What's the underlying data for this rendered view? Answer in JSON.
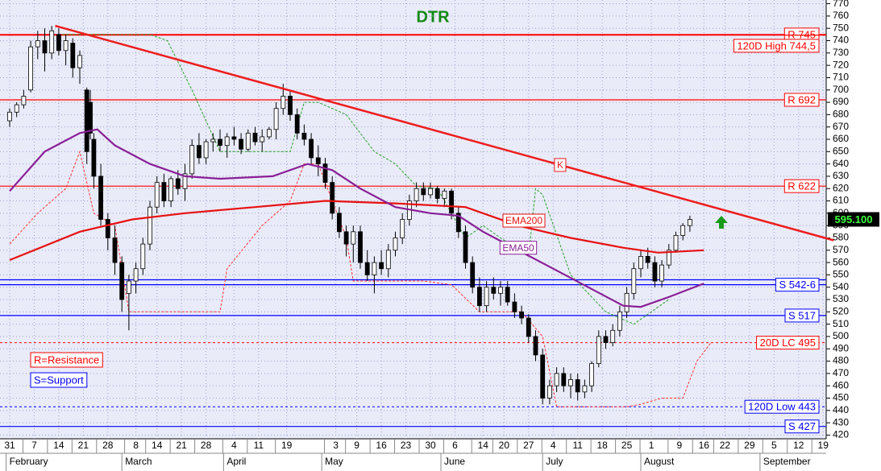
{
  "chart_data": {
    "type": "candlestick",
    "title": "DTR",
    "last_price": "595.100",
    "ylim": [
      417,
      773
    ],
    "yticks": [
      420,
      430,
      440,
      450,
      460,
      470,
      480,
      490,
      500,
      510,
      520,
      530,
      540,
      550,
      560,
      570,
      580,
      590,
      600,
      610,
      620,
      630,
      640,
      650,
      660,
      670,
      680,
      690,
      700,
      710,
      720,
      730,
      740,
      750,
      760,
      770
    ],
    "xlim": [
      -2,
      235
    ],
    "xticks": [
      {
        "value": 0,
        "label": "31"
      },
      {
        "value": 7,
        "label": "7"
      },
      {
        "value": 14,
        "label": "14"
      },
      {
        "value": 21,
        "label": "21"
      },
      {
        "value": 28,
        "label": "28"
      },
      {
        "value": 36,
        "label": "8"
      },
      {
        "value": 42,
        "label": "14"
      },
      {
        "value": 49,
        "label": "21"
      },
      {
        "value": 56,
        "label": "28"
      },
      {
        "value": 64,
        "label": "4"
      },
      {
        "value": 71,
        "label": "11"
      },
      {
        "value": 79,
        "label": "19"
      },
      {
        "value": 93,
        "label": "3"
      },
      {
        "value": 99,
        "label": "9"
      },
      {
        "value": 106,
        "label": "16"
      },
      {
        "value": 113,
        "label": "23"
      },
      {
        "value": 120,
        "label": "30"
      },
      {
        "value": 127,
        "label": "6"
      },
      {
        "value": 135,
        "label": "14"
      },
      {
        "value": 141,
        "label": "20"
      },
      {
        "value": 148,
        "label": "27"
      },
      {
        "value": 155,
        "label": "4"
      },
      {
        "value": 162,
        "label": "11"
      },
      {
        "value": 169,
        "label": "18"
      },
      {
        "value": 176,
        "label": "25"
      },
      {
        "value": 183,
        "label": "1"
      },
      {
        "value": 191,
        "label": "9"
      },
      {
        "value": 198,
        "label": "16"
      },
      {
        "value": 204,
        "label": "22"
      },
      {
        "value": 211,
        "label": "29"
      },
      {
        "value": 218,
        "label": "5"
      },
      {
        "value": 225,
        "label": "12"
      },
      {
        "value": 232,
        "label": "19"
      }
    ],
    "months": [
      {
        "value": -1,
        "label": "February"
      },
      {
        "value": 32,
        "label": "March"
      },
      {
        "value": 61,
        "label": "April"
      },
      {
        "value": 89,
        "label": "May"
      },
      {
        "value": 123,
        "label": "June"
      },
      {
        "value": 152,
        "label": "July"
      },
      {
        "value": 180,
        "label": "August"
      },
      {
        "value": 214,
        "label": "September"
      }
    ],
    "grid": true,
    "x": [
      0,
      2,
      4,
      6,
      8,
      10,
      12,
      14,
      16,
      18,
      20,
      22,
      23,
      24,
      26,
      28,
      30,
      32,
      34,
      36,
      38,
      40,
      42,
      44,
      46,
      48,
      50,
      52,
      54,
      56,
      58,
      60,
      62,
      64,
      66,
      68,
      70,
      72,
      74,
      76,
      78,
      80,
      82,
      84,
      86,
      88,
      90,
      92,
      94,
      96,
      98,
      100,
      102,
      104,
      106,
      108,
      110,
      112,
      114,
      116,
      118,
      120,
      122,
      124,
      126,
      128,
      130,
      132,
      134,
      136,
      138,
      140,
      142,
      144,
      146,
      148,
      150,
      152,
      154,
      156,
      158,
      160,
      162,
      164,
      166,
      168,
      170,
      172,
      174,
      176,
      178,
      180,
      182,
      184,
      186,
      188,
      190,
      192,
      194
    ],
    "open": [
      675,
      682,
      688,
      700,
      735,
      740,
      730,
      745,
      732,
      738,
      718,
      700,
      690,
      660,
      630,
      595,
      580,
      560,
      535,
      545,
      555,
      575,
      605,
      625,
      610,
      628,
      620,
      632,
      655,
      645,
      658,
      660,
      655,
      662,
      660,
      652,
      665,
      658,
      662,
      668,
      685,
      695,
      680,
      665,
      660,
      645,
      640,
      625,
      600,
      585,
      575,
      585,
      560,
      550,
      560,
      555,
      570,
      580,
      595,
      610,
      620,
      615,
      620,
      612,
      618,
      600,
      585,
      560,
      540,
      525,
      540,
      535,
      540,
      528,
      520,
      515,
      500,
      485,
      450,
      460,
      470,
      460,
      465,
      455,
      460,
      478,
      500,
      495,
      505,
      520,
      535,
      555,
      565,
      560,
      545,
      558,
      570,
      582,
      590
    ],
    "high": [
      685,
      690,
      700,
      740,
      748,
      750,
      752,
      750,
      745,
      742,
      732,
      702,
      700,
      665,
      640,
      600,
      590,
      565,
      550,
      560,
      580,
      610,
      630,
      632,
      630,
      635,
      640,
      660,
      665,
      660,
      665,
      668,
      665,
      670,
      665,
      668,
      670,
      668,
      670,
      690,
      705,
      700,
      685,
      672,
      665,
      655,
      645,
      630,
      605,
      590,
      590,
      590,
      570,
      565,
      570,
      575,
      585,
      600,
      615,
      625,
      625,
      625,
      622,
      620,
      620,
      605,
      590,
      565,
      548,
      545,
      548,
      545,
      545,
      535,
      525,
      518,
      505,
      490,
      465,
      475,
      475,
      470,
      470,
      465,
      480,
      505,
      505,
      510,
      525,
      540,
      560,
      570,
      572,
      565,
      562,
      575,
      585,
      592,
      598
    ],
    "low": [
      670,
      678,
      685,
      698,
      725,
      715,
      725,
      728,
      720,
      710,
      705,
      640,
      660,
      620,
      590,
      570,
      550,
      520,
      505,
      535,
      550,
      570,
      600,
      605,
      605,
      615,
      610,
      628,
      640,
      640,
      650,
      650,
      645,
      655,
      648,
      650,
      655,
      650,
      660,
      660,
      680,
      675,
      660,
      655,
      640,
      630,
      620,
      595,
      580,
      565,
      560,
      555,
      545,
      535,
      550,
      548,
      565,
      575,
      590,
      605,
      610,
      612,
      608,
      605,
      595,
      580,
      555,
      535,
      520,
      520,
      530,
      525,
      525,
      515,
      510,
      495,
      480,
      445,
      445,
      455,
      455,
      450,
      448,
      450,
      455,
      475,
      490,
      492,
      500,
      515,
      530,
      548,
      555,
      540,
      540,
      555,
      568,
      578,
      585
    ],
    "close": [
      682,
      688,
      695,
      735,
      740,
      730,
      748,
      732,
      740,
      718,
      728,
      650,
      665,
      630,
      595,
      580,
      560,
      530,
      545,
      555,
      575,
      605,
      625,
      610,
      628,
      620,
      632,
      655,
      645,
      658,
      660,
      655,
      662,
      660,
      652,
      665,
      658,
      662,
      668,
      685,
      695,
      680,
      665,
      660,
      645,
      640,
      625,
      600,
      585,
      575,
      585,
      560,
      550,
      560,
      555,
      570,
      580,
      595,
      610,
      620,
      615,
      620,
      612,
      618,
      600,
      585,
      560,
      540,
      525,
      540,
      535,
      540,
      528,
      520,
      515,
      500,
      485,
      450,
      460,
      470,
      460,
      465,
      455,
      460,
      478,
      500,
      495,
      505,
      520,
      535,
      555,
      565,
      560,
      545,
      558,
      570,
      582,
      590,
      595
    ],
    "lines": [
      {
        "name": "EMA200",
        "color": "#e81010",
        "x": [
          0,
          20,
          35,
          50,
          70,
          90,
          110,
          130,
          145,
          160,
          175,
          185,
          198
        ],
        "values": [
          562,
          585,
          595,
          600,
          605,
          610,
          608,
          605,
          590,
          580,
          572,
          568,
          570
        ]
      },
      {
        "name": "EMA50",
        "color": "#8a1e96",
        "x": [
          0,
          10,
          20,
          25,
          30,
          40,
          50,
          60,
          75,
          85,
          92,
          100,
          110,
          120,
          128,
          135,
          145,
          155,
          165,
          175,
          180,
          188,
          198
        ],
        "values": [
          618,
          650,
          665,
          668,
          655,
          640,
          630,
          628,
          630,
          640,
          635,
          620,
          605,
          600,
          598,
          585,
          570,
          555,
          540,
          525,
          524,
          532,
          543
        ]
      }
    ],
    "channels": [
      {
        "color": "#ff3030",
        "x": [
          0,
          8,
          16,
          20,
          24,
          30,
          34,
          60,
          62,
          72,
          80,
          84,
          88,
          92,
          96,
          98,
          118,
          126,
          134,
          146,
          152,
          156,
          176,
          180,
          186,
          192,
          196,
          200
        ],
        "values": [
          575,
          600,
          620,
          650,
          600,
          590,
          520,
          520,
          555,
          590,
          610,
          640,
          640,
          610,
          580,
          545,
          545,
          542,
          520,
          520,
          500,
          443,
          443,
          445,
          450,
          450,
          480,
          495
        ]
      },
      {
        "color": "#22a022",
        "x": [
          15,
          40,
          45,
          52,
          60,
          80,
          84,
          88,
          96,
          104,
          110,
          116,
          122,
          126,
          130,
          135,
          140,
          148,
          150,
          152,
          160,
          170,
          178,
          188
        ],
        "values": [
          745,
          745,
          740,
          700,
          650,
          650,
          690,
          690,
          680,
          650,
          640,
          622,
          620,
          600,
          580,
          590,
          580,
          565,
          620,
          615,
          550,
          520,
          510,
          530
        ]
      }
    ],
    "levels": [
      {
        "label": "R 745",
        "values": [
          745
        ],
        "color": "#ff0000",
        "dashed": false
      },
      {
        "label": "120D High 744,5",
        "values": [
          744.5
        ],
        "color": "#ff0000",
        "dashed": false
      },
      {
        "label": "R 692",
        "values": [
          692
        ],
        "color": "#ff0000",
        "dashed": false
      },
      {
        "label": "R 622",
        "values": [
          622
        ],
        "color": "#ff0000",
        "dashed": false
      },
      {
        "label": "S 542-6",
        "values": [
          542,
          546
        ],
        "color": "#0000ff",
        "dashed": false
      },
      {
        "label": "S 517",
        "values": [
          517
        ],
        "color": "#0000ff",
        "dashed": false
      },
      {
        "label": "20D LC 495",
        "values": [
          495
        ],
        "color": "#ff0000",
        "dashed": true
      },
      {
        "label": "120D Low 443",
        "values": [
          443
        ],
        "color": "#0000ff",
        "dashed": true
      },
      {
        "label": "S 427",
        "values": [
          427
        ],
        "color": "#0000ff",
        "dashed": false
      }
    ],
    "trendline": {
      "label": "K",
      "color": "#ee1c1c",
      "x": [
        13,
        235
      ],
      "values": [
        752,
        578
      ]
    },
    "annotations": [
      "R=Resistance",
      "S=Support"
    ]
  }
}
